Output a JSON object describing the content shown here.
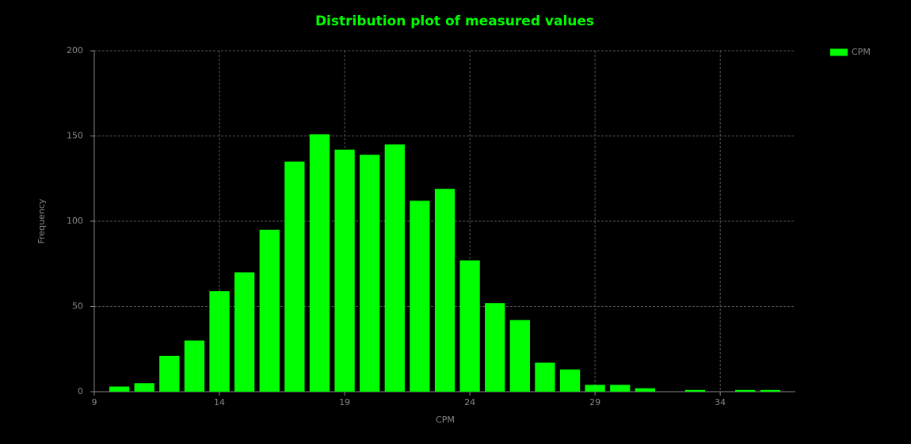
{
  "chart_data": {
    "type": "bar",
    "title": "Distribution plot of measured values",
    "x_label": "CPM",
    "y_label": "Frequency",
    "x": [
      10,
      11,
      12,
      13,
      14,
      15,
      16,
      17,
      18,
      19,
      20,
      21,
      22,
      23,
      24,
      25,
      26,
      27,
      28,
      29,
      30,
      31,
      32,
      33,
      34,
      35,
      36
    ],
    "series": [
      {
        "name": "CPM",
        "color": "#00ff00",
        "values": [
          3,
          5,
          21,
          30,
          59,
          70,
          95,
          135,
          151,
          142,
          139,
          145,
          112,
          119,
          77,
          52,
          42,
          17,
          13,
          4,
          4,
          2,
          0,
          1,
          0,
          1,
          1
        ]
      }
    ],
    "xlim": [
      9,
      37
    ],
    "xticks": [
      9,
      14,
      19,
      24,
      29,
      34
    ],
    "ylim": [
      0,
      200
    ],
    "yticks": [
      0,
      50,
      100,
      150,
      200
    ],
    "grid": true,
    "legend": "right"
  }
}
